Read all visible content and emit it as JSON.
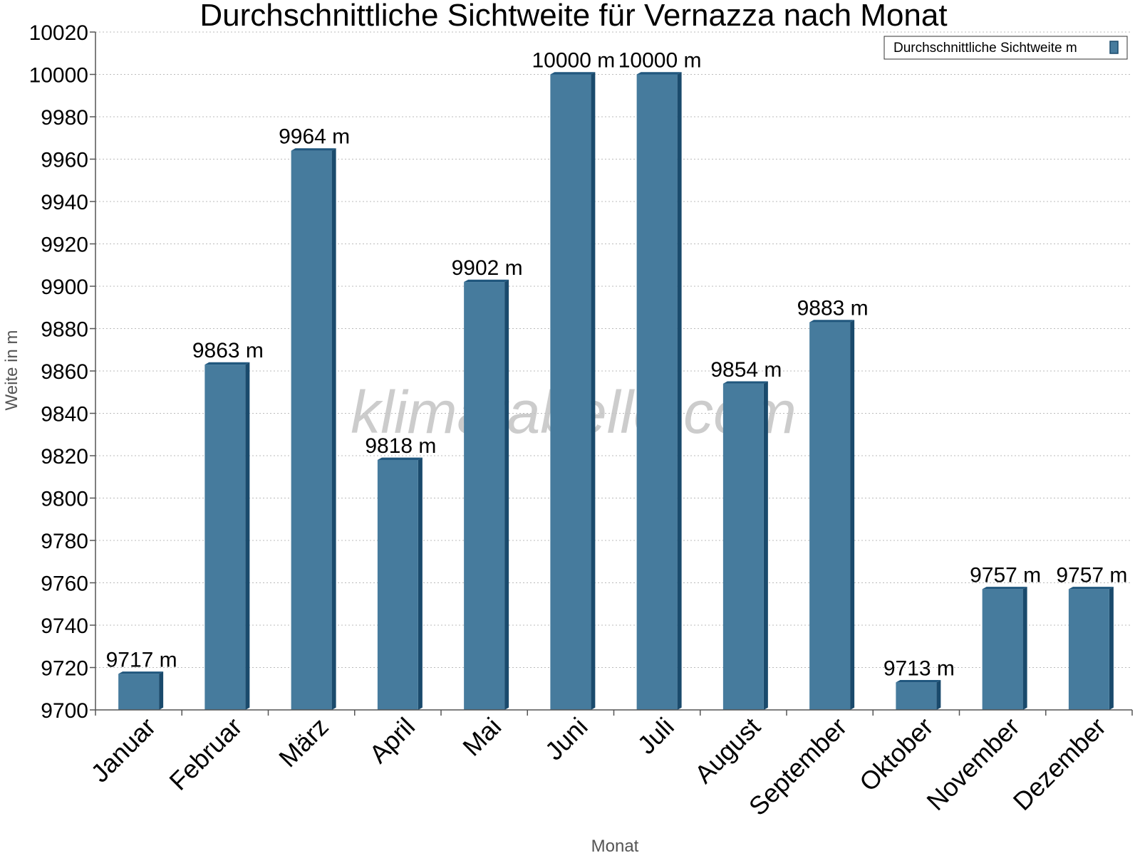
{
  "chart_data": {
    "type": "bar",
    "title": "Durchschnittliche Sichtweite für Vernazza nach Monat",
    "xlabel": "Monat",
    "ylabel": "Weite in m",
    "categories": [
      "Januar",
      "Februar",
      "März",
      "April",
      "Mai",
      "Juni",
      "Juli",
      "August",
      "September",
      "Oktober",
      "November",
      "Dezember"
    ],
    "series": [
      {
        "name": "Durchschnittliche Sichtweite m",
        "values": [
          9717,
          9863,
          9964,
          9818,
          9902,
          10000,
          10000,
          9854,
          9883,
          9713,
          9757,
          9757
        ],
        "labels": [
          "9717 m",
          "9863 m",
          "9964 m",
          "9818 m",
          "9902 m",
          "10000 m",
          "10000 m",
          "9854 m",
          "9883 m",
          "9713 m",
          "9757 m",
          "9757 m"
        ]
      }
    ],
    "ylim": [
      9700,
      10020
    ],
    "yticks": [
      "9700",
      "9720",
      "9740",
      "9760",
      "9780",
      "9800",
      "9820",
      "9840",
      "9860",
      "9880",
      "9900",
      "9920",
      "9940",
      "9960",
      "9980",
      "10000",
      "10020"
    ],
    "grid": true,
    "legend_position": "top-right",
    "colors": {
      "bar_front": "#467b9d",
      "bar_side": "#1a4a6c",
      "bar_top": "#20577e",
      "grid": "#bbbbbb",
      "axis": "#555555"
    },
    "watermark": "klimatabelle.com"
  }
}
